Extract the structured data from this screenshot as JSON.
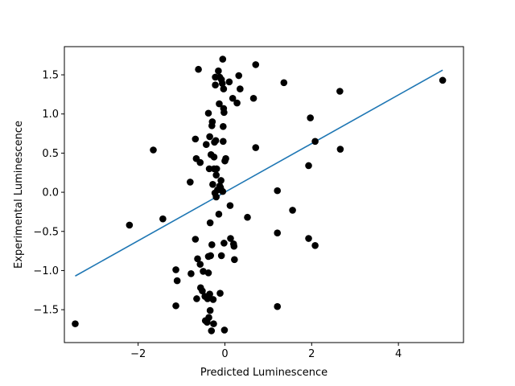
{
  "chart_data": {
    "type": "scatter",
    "title": "",
    "xlabel": "Predicted Luminescence",
    "ylabel": "Experimental Luminescence",
    "xlim": [
      -3.7,
      5.5
    ],
    "ylim": [
      -1.92,
      1.86
    ],
    "xticks": [
      -2,
      0,
      2,
      4
    ],
    "yticks": [
      -1.5,
      -1.0,
      -0.5,
      0.0,
      0.5,
      1.0,
      1.5
    ],
    "xtick_labels": [
      "−2",
      "0",
      "2",
      "4"
    ],
    "ytick_labels": [
      "−1.5",
      "−1.0",
      "−0.5",
      "0.0",
      "0.5",
      "1.0",
      "1.5"
    ],
    "grid": false,
    "colors": {
      "points": "#000000",
      "fit_line": "#1f77b4",
      "axes": "#000000"
    },
    "fit_line": {
      "x": [
        -3.45,
        5.02
      ],
      "y": [
        -1.07,
        1.56
      ]
    },
    "points": [
      {
        "x": -3.45,
        "y": -1.68
      },
      {
        "x": -2.2,
        "y": -0.42
      },
      {
        "x": -1.65,
        "y": 0.54
      },
      {
        "x": -1.43,
        "y": -0.34
      },
      {
        "x": -1.13,
        "y": -0.99
      },
      {
        "x": -1.1,
        "y": -1.13
      },
      {
        "x": -1.13,
        "y": -1.45
      },
      {
        "x": -0.8,
        "y": 0.13
      },
      {
        "x": -0.78,
        "y": -1.04
      },
      {
        "x": -0.68,
        "y": 0.68
      },
      {
        "x": -0.68,
        "y": -0.6
      },
      {
        "x": -0.66,
        "y": 0.43
      },
      {
        "x": -0.65,
        "y": -1.36
      },
      {
        "x": -0.63,
        "y": -0.85
      },
      {
        "x": -0.61,
        "y": 1.57
      },
      {
        "x": -0.57,
        "y": 0.38
      },
      {
        "x": -0.57,
        "y": -0.92
      },
      {
        "x": -0.56,
        "y": -1.22
      },
      {
        "x": -0.52,
        "y": -1.26
      },
      {
        "x": -0.5,
        "y": -1.01
      },
      {
        "x": -0.46,
        "y": -1.33
      },
      {
        "x": -0.45,
        "y": -1.64
      },
      {
        "x": -0.43,
        "y": 0.61
      },
      {
        "x": -0.41,
        "y": -1.66
      },
      {
        "x": -0.4,
        "y": -1.36
      },
      {
        "x": -0.38,
        "y": 1.01
      },
      {
        "x": -0.38,
        "y": -0.82
      },
      {
        "x": -0.38,
        "y": -1.03
      },
      {
        "x": -0.37,
        "y": -1.6
      },
      {
        "x": -0.36,
        "y": 0.3
      },
      {
        "x": -0.35,
        "y": 0.71
      },
      {
        "x": -0.35,
        "y": -1.3
      },
      {
        "x": -0.34,
        "y": -0.39
      },
      {
        "x": -0.34,
        "y": -1.51
      },
      {
        "x": -0.33,
        "y": -0.81
      },
      {
        "x": -0.32,
        "y": 0.48
      },
      {
        "x": -0.31,
        "y": -1.77
      },
      {
        "x": -0.3,
        "y": 0.85
      },
      {
        "x": -0.3,
        "y": -0.67
      },
      {
        "x": -0.29,
        "y": 0.9
      },
      {
        "x": -0.28,
        "y": 0.1
      },
      {
        "x": -0.27,
        "y": -1.37
      },
      {
        "x": -0.26,
        "y": -1.68
      },
      {
        "x": -0.25,
        "y": 0.3
      },
      {
        "x": -0.25,
        "y": 0.45
      },
      {
        "x": -0.24,
        "y": 0.64
      },
      {
        "x": -0.23,
        "y": -0.01
      },
      {
        "x": -0.22,
        "y": 1.37
      },
      {
        "x": -0.22,
        "y": 1.47
      },
      {
        "x": -0.21,
        "y": 0.66
      },
      {
        "x": -0.2,
        "y": 0.22
      },
      {
        "x": -0.2,
        "y": -0.06
      },
      {
        "x": -0.19,
        "y": 0.3
      },
      {
        "x": -0.17,
        "y": 0.03
      },
      {
        "x": -0.15,
        "y": 1.55
      },
      {
        "x": -0.14,
        "y": -0.28
      },
      {
        "x": -0.13,
        "y": 1.13
      },
      {
        "x": -0.12,
        "y": 0.08
      },
      {
        "x": -0.12,
        "y": 1.47
      },
      {
        "x": -0.11,
        "y": -1.29
      },
      {
        "x": -0.1,
        "y": 0.06
      },
      {
        "x": -0.09,
        "y": 0.15
      },
      {
        "x": -0.08,
        "y": 1.44
      },
      {
        "x": -0.08,
        "y": -0.81
      },
      {
        "x": -0.06,
        "y": 1.39
      },
      {
        "x": -0.05,
        "y": 0.01
      },
      {
        "x": -0.05,
        "y": 1.7
      },
      {
        "x": -0.04,
        "y": 0.84
      },
      {
        "x": -0.04,
        "y": 0.65
      },
      {
        "x": -0.03,
        "y": 1.07
      },
      {
        "x": -0.03,
        "y": 1.32
      },
      {
        "x": -0.02,
        "y": 1.02
      },
      {
        "x": -0.02,
        "y": -0.65
      },
      {
        "x": -0.01,
        "y": -1.76
      },
      {
        "x": 0.0,
        "y": 0.4
      },
      {
        "x": 0.02,
        "y": 0.43
      },
      {
        "x": 0.1,
        "y": 1.41
      },
      {
        "x": 0.12,
        "y": -0.17
      },
      {
        "x": 0.13,
        "y": -0.59
      },
      {
        "x": 0.18,
        "y": 1.2
      },
      {
        "x": 0.2,
        "y": -0.66
      },
      {
        "x": 0.21,
        "y": -0.69
      },
      {
        "x": 0.22,
        "y": -0.86
      },
      {
        "x": 0.28,
        "y": 1.14
      },
      {
        "x": 0.32,
        "y": 1.49
      },
      {
        "x": 0.35,
        "y": 1.32
      },
      {
        "x": 0.52,
        "y": -0.32
      },
      {
        "x": 0.66,
        "y": 1.2
      },
      {
        "x": 0.71,
        "y": 0.57
      },
      {
        "x": 0.71,
        "y": 1.63
      },
      {
        "x": 1.21,
        "y": 0.02
      },
      {
        "x": 1.21,
        "y": -0.52
      },
      {
        "x": 1.21,
        "y": -1.46
      },
      {
        "x": 1.36,
        "y": 1.4
      },
      {
        "x": 1.56,
        "y": -0.23
      },
      {
        "x": 1.93,
        "y": 0.34
      },
      {
        "x": 1.93,
        "y": -0.59
      },
      {
        "x": 1.97,
        "y": 0.95
      },
      {
        "x": 2.08,
        "y": 0.65
      },
      {
        "x": 2.08,
        "y": -0.68
      },
      {
        "x": 2.65,
        "y": 1.29
      },
      {
        "x": 2.66,
        "y": 0.55
      },
      {
        "x": 5.02,
        "y": 1.43
      }
    ]
  }
}
